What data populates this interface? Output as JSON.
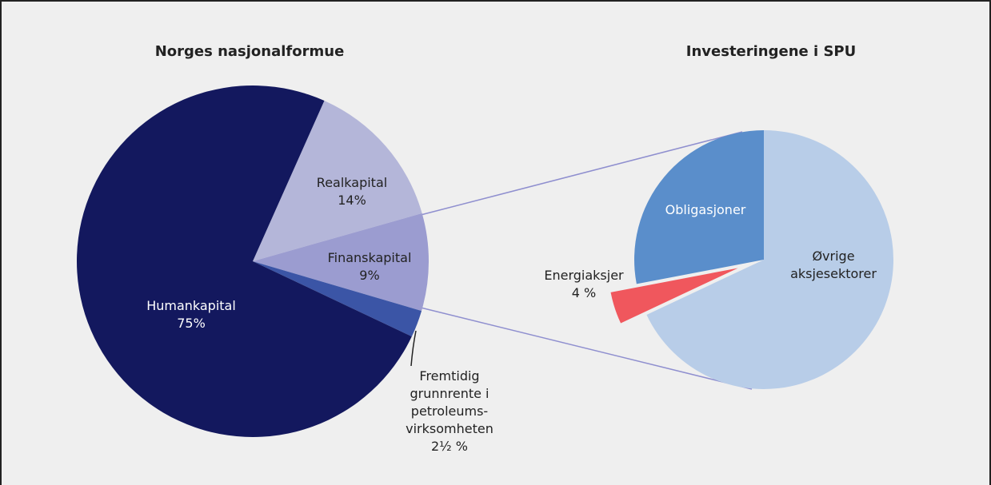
{
  "chart_data": [
    {
      "type": "pie",
      "title": "Norges nasjonalformue",
      "categories": [
        "Realkapital",
        "Finanskapital",
        "Fremtidig grunnrente i petroleums-virksomheten",
        "Humankapital"
      ],
      "values": [
        14,
        9,
        2.5,
        75
      ],
      "value_labels": [
        "14%",
        "9%",
        "2½ %",
        "75%"
      ],
      "colors": [
        "#b4b6d9",
        "#9b9cd0",
        "#3b55a6",
        "#13185e"
      ]
    },
    {
      "type": "pie",
      "title": "Investeringene i SPU",
      "categories": [
        "Øvrige aksjesektorer",
        "Energiaksjer",
        "Obligasjoner"
      ],
      "values": [
        68,
        4,
        28
      ],
      "value_labels": [
        null,
        "4 %",
        null
      ],
      "colors": [
        "#b8cde8",
        "#f0575d",
        "#5a8ecb"
      ]
    }
  ]
}
